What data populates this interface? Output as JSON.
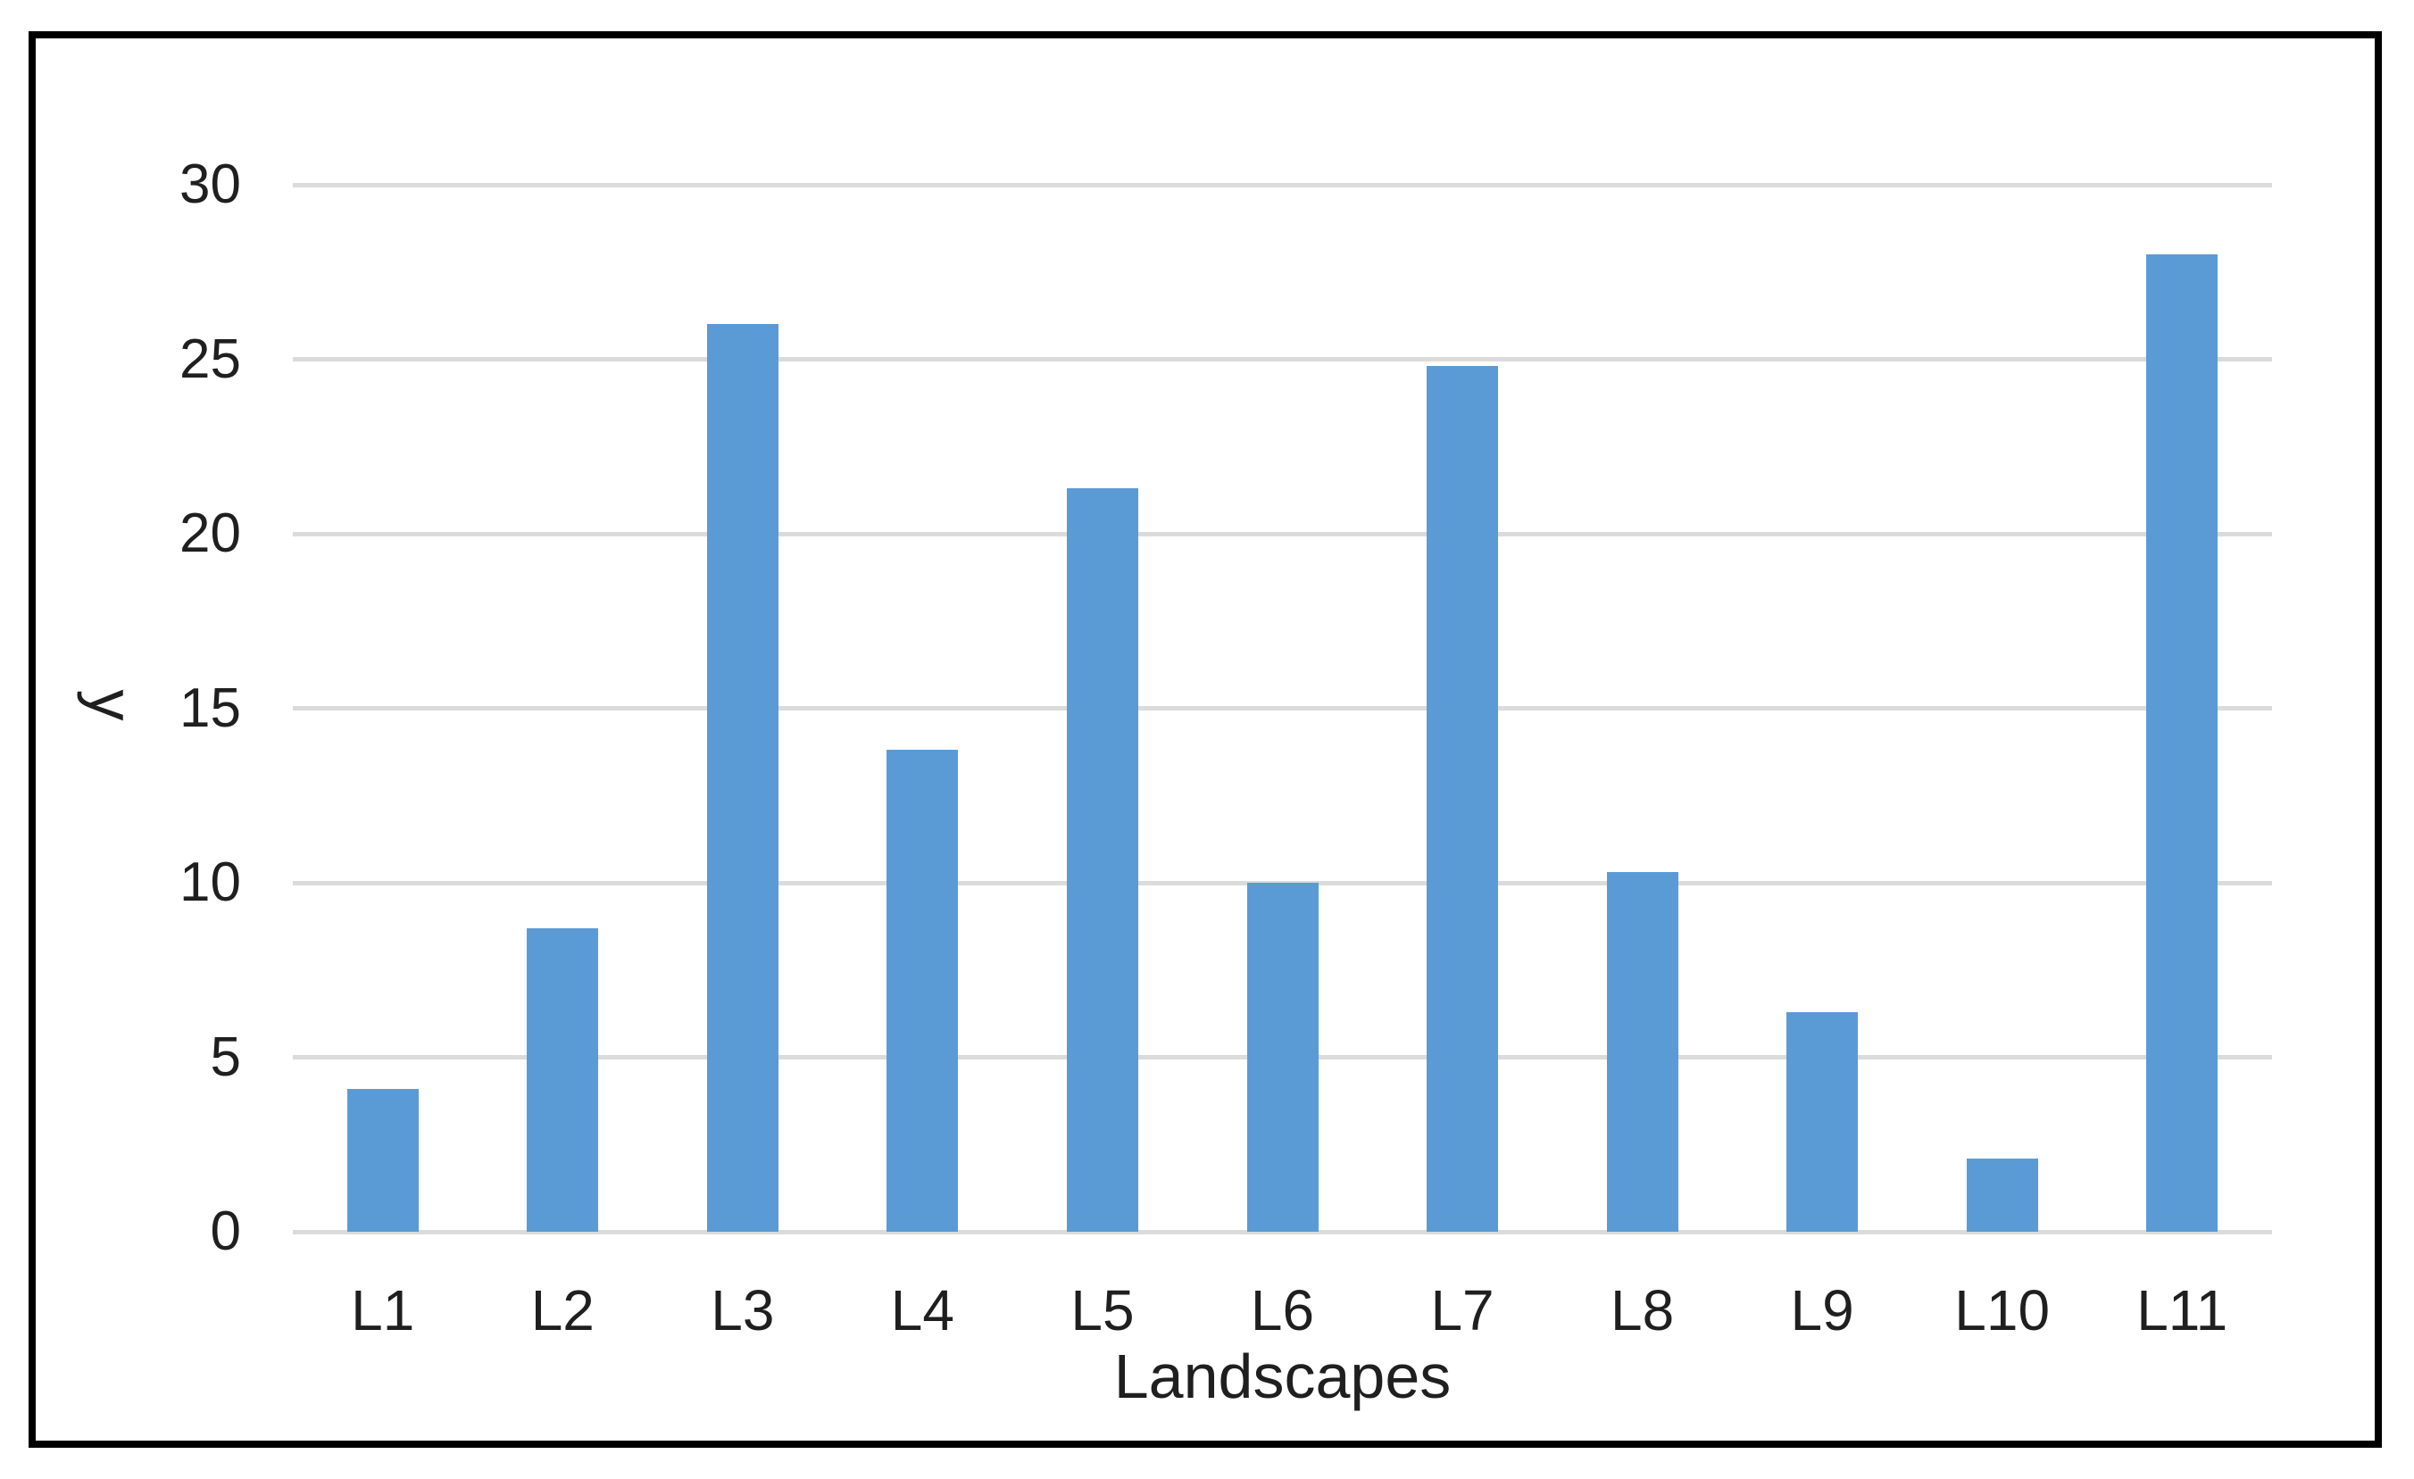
{
  "chart_data": {
    "type": "bar",
    "title": "",
    "categories": [
      "L1",
      "L2",
      "L3",
      "L4",
      "L5",
      "L6",
      "L7",
      "L8",
      "L9",
      "L10",
      "L11"
    ],
    "values": [
      4.1,
      8.7,
      26.0,
      13.8,
      21.3,
      10.0,
      24.8,
      10.3,
      6.3,
      2.1,
      28.0
    ],
    "series": [
      {
        "name": "y",
        "values": [
          4.1,
          8.7,
          26.0,
          13.8,
          21.3,
          10.0,
          24.8,
          10.3,
          6.3,
          2.1,
          28.0
        ]
      }
    ],
    "xlabel": "Landscapes",
    "ylabel": "y",
    "ylim": [
      0,
      30
    ],
    "yticks": [
      0,
      5,
      10,
      15,
      20,
      25,
      30
    ],
    "grid": true,
    "gridline_orientation": "horizontal",
    "legend_position": "none",
    "bar_gap_percent": 150,
    "colors": {
      "bar": "#5B9BD5",
      "gridline": "#DBDBDB",
      "text": "#1F1F1F",
      "frame_border": "#000000",
      "background": "#FFFFFF"
    }
  }
}
